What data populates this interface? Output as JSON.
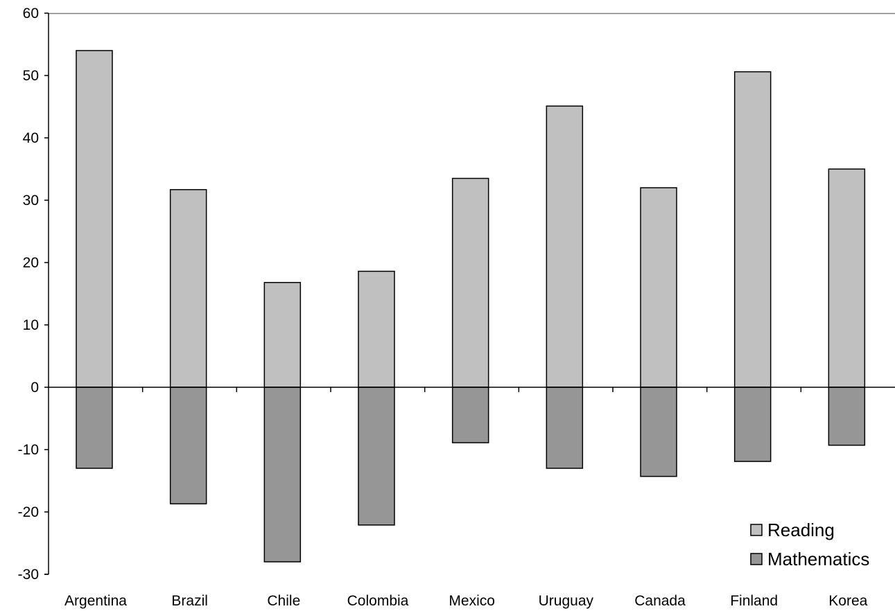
{
  "chart_data": {
    "type": "bar",
    "categories": [
      "Argentina",
      "Brazil",
      "Chile",
      "Colombia",
      "Mexico",
      "Uruguay",
      "Canada",
      "Finland",
      "Korea"
    ],
    "series": [
      {
        "name": "Reading",
        "values": [
          54,
          31.7,
          16.8,
          18.6,
          33.5,
          45.1,
          32,
          50.6,
          35
        ],
        "color": "#c0c0c0"
      },
      {
        "name": "Mathematics",
        "values": [
          -13,
          -18.7,
          -28,
          -22.1,
          -8.9,
          -13,
          -14.3,
          -11.9,
          -9.3
        ],
        "color": "#969696"
      }
    ],
    "ylim": [
      -30,
      60
    ],
    "yticks": [
      "60",
      "50",
      "40",
      "30",
      "20",
      "10",
      "0",
      "-10",
      "-20",
      "-30"
    ],
    "xlabel": "",
    "ylabel": "",
    "title": "",
    "grid": false,
    "legend_position": "bottom-right",
    "bar_layout": "overlapping-diverging",
    "colors": {
      "axis": "#000000",
      "bar_outline": "#000000",
      "top_border": "#808080",
      "background": "#ffffff"
    }
  }
}
